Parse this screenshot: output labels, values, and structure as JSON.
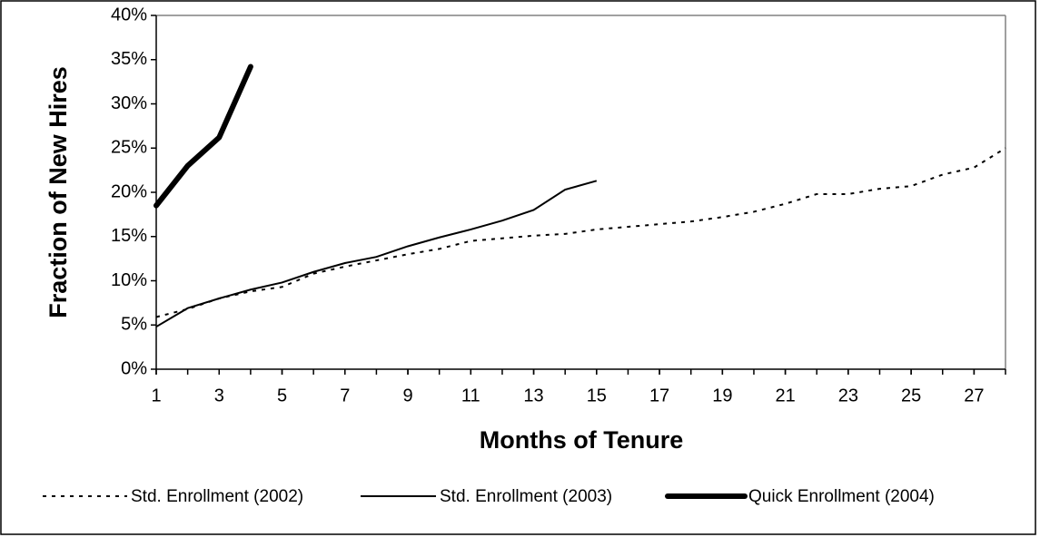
{
  "chart_data": {
    "type": "line",
    "x_label": "Months of Tenure",
    "y_label": "Fraction of New Hires",
    "x": [
      1,
      2,
      3,
      4,
      5,
      6,
      7,
      8,
      9,
      10,
      11,
      12,
      13,
      14,
      15,
      16,
      17,
      18,
      19,
      20,
      21,
      22,
      23,
      24,
      25,
      26,
      27,
      28
    ],
    "xlim": [
      1,
      28
    ],
    "xticks": [
      1,
      3,
      5,
      7,
      9,
      11,
      13,
      15,
      17,
      19,
      21,
      23,
      25,
      27
    ],
    "ylim": [
      0,
      40
    ],
    "yticks": [
      {
        "value": 0,
        "label": "0%"
      },
      {
        "value": 5,
        "label": "5%"
      },
      {
        "value": 10,
        "label": "10%"
      },
      {
        "value": 15,
        "label": "15%"
      },
      {
        "value": 20,
        "label": "20%"
      },
      {
        "value": 25,
        "label": "25%"
      },
      {
        "value": 30,
        "label": "30%"
      },
      {
        "value": 35,
        "label": "35%"
      },
      {
        "value": 40,
        "label": "40%"
      }
    ],
    "grid": false,
    "legend": "bottom",
    "series": [
      {
        "name": "Std. Enrollment (2002)",
        "color": "#000000",
        "style": "dotted",
        "values": [
          5.9,
          6.8,
          8.0,
          8.8,
          9.3,
          10.8,
          11.6,
          12.3,
          13.0,
          13.6,
          14.5,
          14.8,
          15.1,
          15.3,
          15.8,
          16.1,
          16.4,
          16.7,
          17.2,
          17.8,
          18.7,
          19.8,
          19.8,
          20.4,
          20.7,
          22.0,
          22.8,
          25.0
        ]
      },
      {
        "name": "Std. Enrollment (2003)",
        "color": "#000000",
        "style": "solid",
        "values": [
          4.8,
          6.9,
          8.0,
          9.0,
          9.8,
          11.0,
          12.0,
          12.7,
          13.9,
          14.9,
          15.8,
          16.8,
          18.0,
          20.3,
          21.3,
          null,
          null,
          null,
          null,
          null,
          null,
          null,
          null,
          null,
          null,
          null,
          null,
          null
        ]
      },
      {
        "name": "Quick Enrollment (2004)",
        "color": "#000000",
        "style": "bold",
        "values": [
          18.5,
          23.0,
          26.2,
          34.2,
          null,
          null,
          null,
          null,
          null,
          null,
          null,
          null,
          null,
          null,
          null,
          null,
          null,
          null,
          null,
          null,
          null,
          null,
          null,
          null,
          null,
          null,
          null,
          null
        ]
      }
    ]
  }
}
